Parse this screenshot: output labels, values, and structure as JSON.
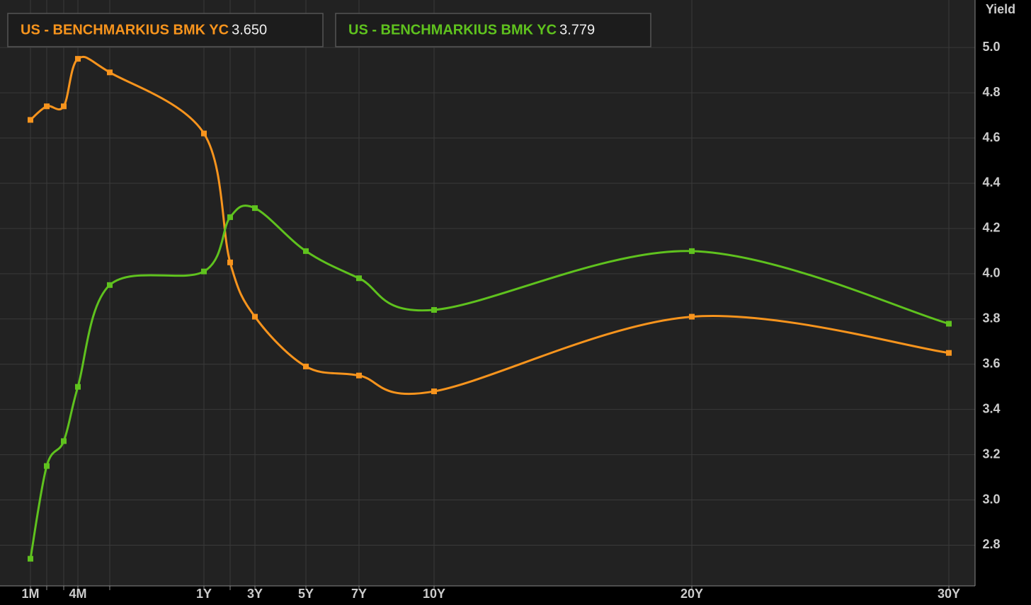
{
  "chart_data": {
    "type": "line",
    "y_label": "Yield",
    "x": [
      0.0833,
      0.1667,
      0.25,
      0.3333,
      0.5,
      1,
      2,
      3,
      5,
      7,
      10,
      20,
      30
    ],
    "series": [
      {
        "name": "US - BENCHMARKIUS BMK YC",
        "color": "#f7941d",
        "values": [
          4.68,
          4.74,
          4.74,
          4.95,
          4.89,
          4.62,
          4.05,
          3.81,
          3.59,
          3.55,
          3.48,
          3.81,
          3.65
        ],
        "legend_value": {
          "value": 3.65,
          "label": "3.650"
        }
      },
      {
        "name": "US - BENCHMARKIUS BMK YC",
        "color": "#5fc21e",
        "values": [
          2.74,
          3.15,
          3.26,
          3.5,
          3.95,
          4.01,
          4.25,
          4.29,
          4.1,
          3.98,
          3.84,
          4.1,
          3.779
        ],
        "legend_value": {
          "value": 3.779,
          "label": "3.779"
        }
      }
    ],
    "xlim": [
      0,
      31
    ],
    "xticks": [
      {
        "value": 0.0833,
        "label": "1M"
      },
      {
        "value": 0.1667,
        "label": null
      },
      {
        "value": 0.25,
        "label": null
      },
      {
        "value": 0.3333,
        "label": "4M"
      },
      {
        "value": 0.5,
        "label": null
      },
      {
        "value": 1,
        "label": "1Y"
      },
      {
        "value": 2,
        "label": null
      },
      {
        "value": 3,
        "label": "3Y"
      },
      {
        "value": 5,
        "label": "5Y"
      },
      {
        "value": 7,
        "label": "7Y"
      },
      {
        "value": 10,
        "label": "10Y"
      },
      {
        "value": 20,
        "label": "20Y"
      },
      {
        "value": 30,
        "label": "30Y"
      }
    ],
    "ylim": [
      2.62,
      5.21
    ],
    "yticks": [
      2.8,
      {
        "value": 3,
        "label": "3.0"
      },
      3.2,
      3.4,
      3.6,
      3.8,
      {
        "value": 4,
        "label": "4.0"
      },
      4.2,
      4.4,
      4.6,
      4.8,
      {
        "value": 5,
        "label": "5.0"
      }
    ],
    "grid": true
  }
}
